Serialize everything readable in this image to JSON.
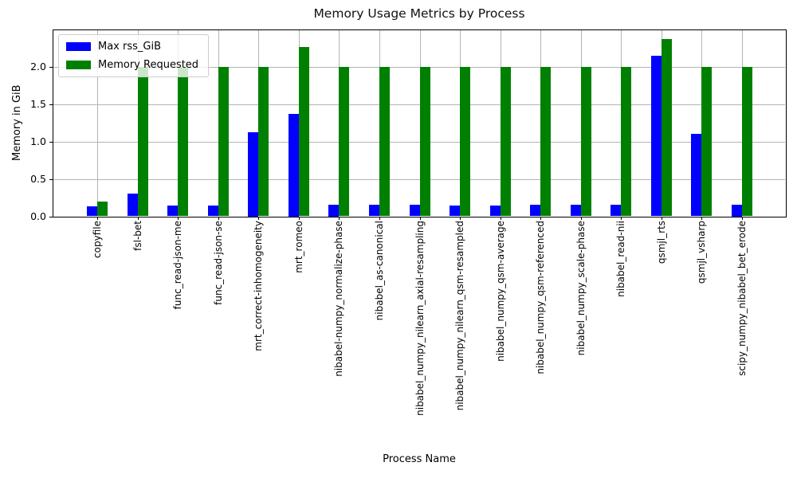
{
  "chart_data": {
    "type": "bar",
    "title": "Memory Usage Metrics by Process",
    "xlabel": "Process Name",
    "ylabel": "Memory in GiB",
    "categories": [
      "copyfile",
      "fsl-bet",
      "func_read-json-me",
      "func_read-json-se",
      "mrt_correct-inhomogeneity",
      "mrt_romeo",
      "nibabel-numpy_normalize-phase",
      "nibabel_as-canonical",
      "nibabel_numpy_nilearn_axial-resampling",
      "nibabel_numpy_nilearn_qsm-resampled",
      "nibabel_numpy_qsm-average",
      "nibabel_numpy_qsm-referenced",
      "nibabel_numpy_scale-phase",
      "nibabel_read-nii",
      "qsmjl_rts",
      "qsmjl_vsharp",
      "scipy_numpy_nibabel_bet_erode"
    ],
    "series": [
      {
        "name": "Max rss_GiB",
        "color": "#0000ff",
        "values": [
          0.13,
          0.3,
          0.14,
          0.14,
          1.13,
          1.37,
          0.16,
          0.15,
          0.15,
          0.14,
          0.14,
          0.15,
          0.15,
          0.15,
          2.15,
          1.1,
          0.16
        ]
      },
      {
        "name": "Memory Requested",
        "color": "#008000",
        "values": [
          0.2,
          2.0,
          2.0,
          2.0,
          2.0,
          2.27,
          2.0,
          2.0,
          2.0,
          2.0,
          2.0,
          2.0,
          2.0,
          2.0,
          2.37,
          2.0,
          2.0
        ]
      }
    ],
    "ylim": [
      0,
      2.5
    ],
    "yticks": [
      "0.0",
      "0.5",
      "1.0",
      "1.5",
      "2.0"
    ],
    "ytick_values": [
      0,
      0.5,
      1.0,
      1.5,
      2.0
    ],
    "grid": true,
    "legend_position": "upper left",
    "grid_color": "#b4b4b4",
    "background": "#ffffff"
  }
}
